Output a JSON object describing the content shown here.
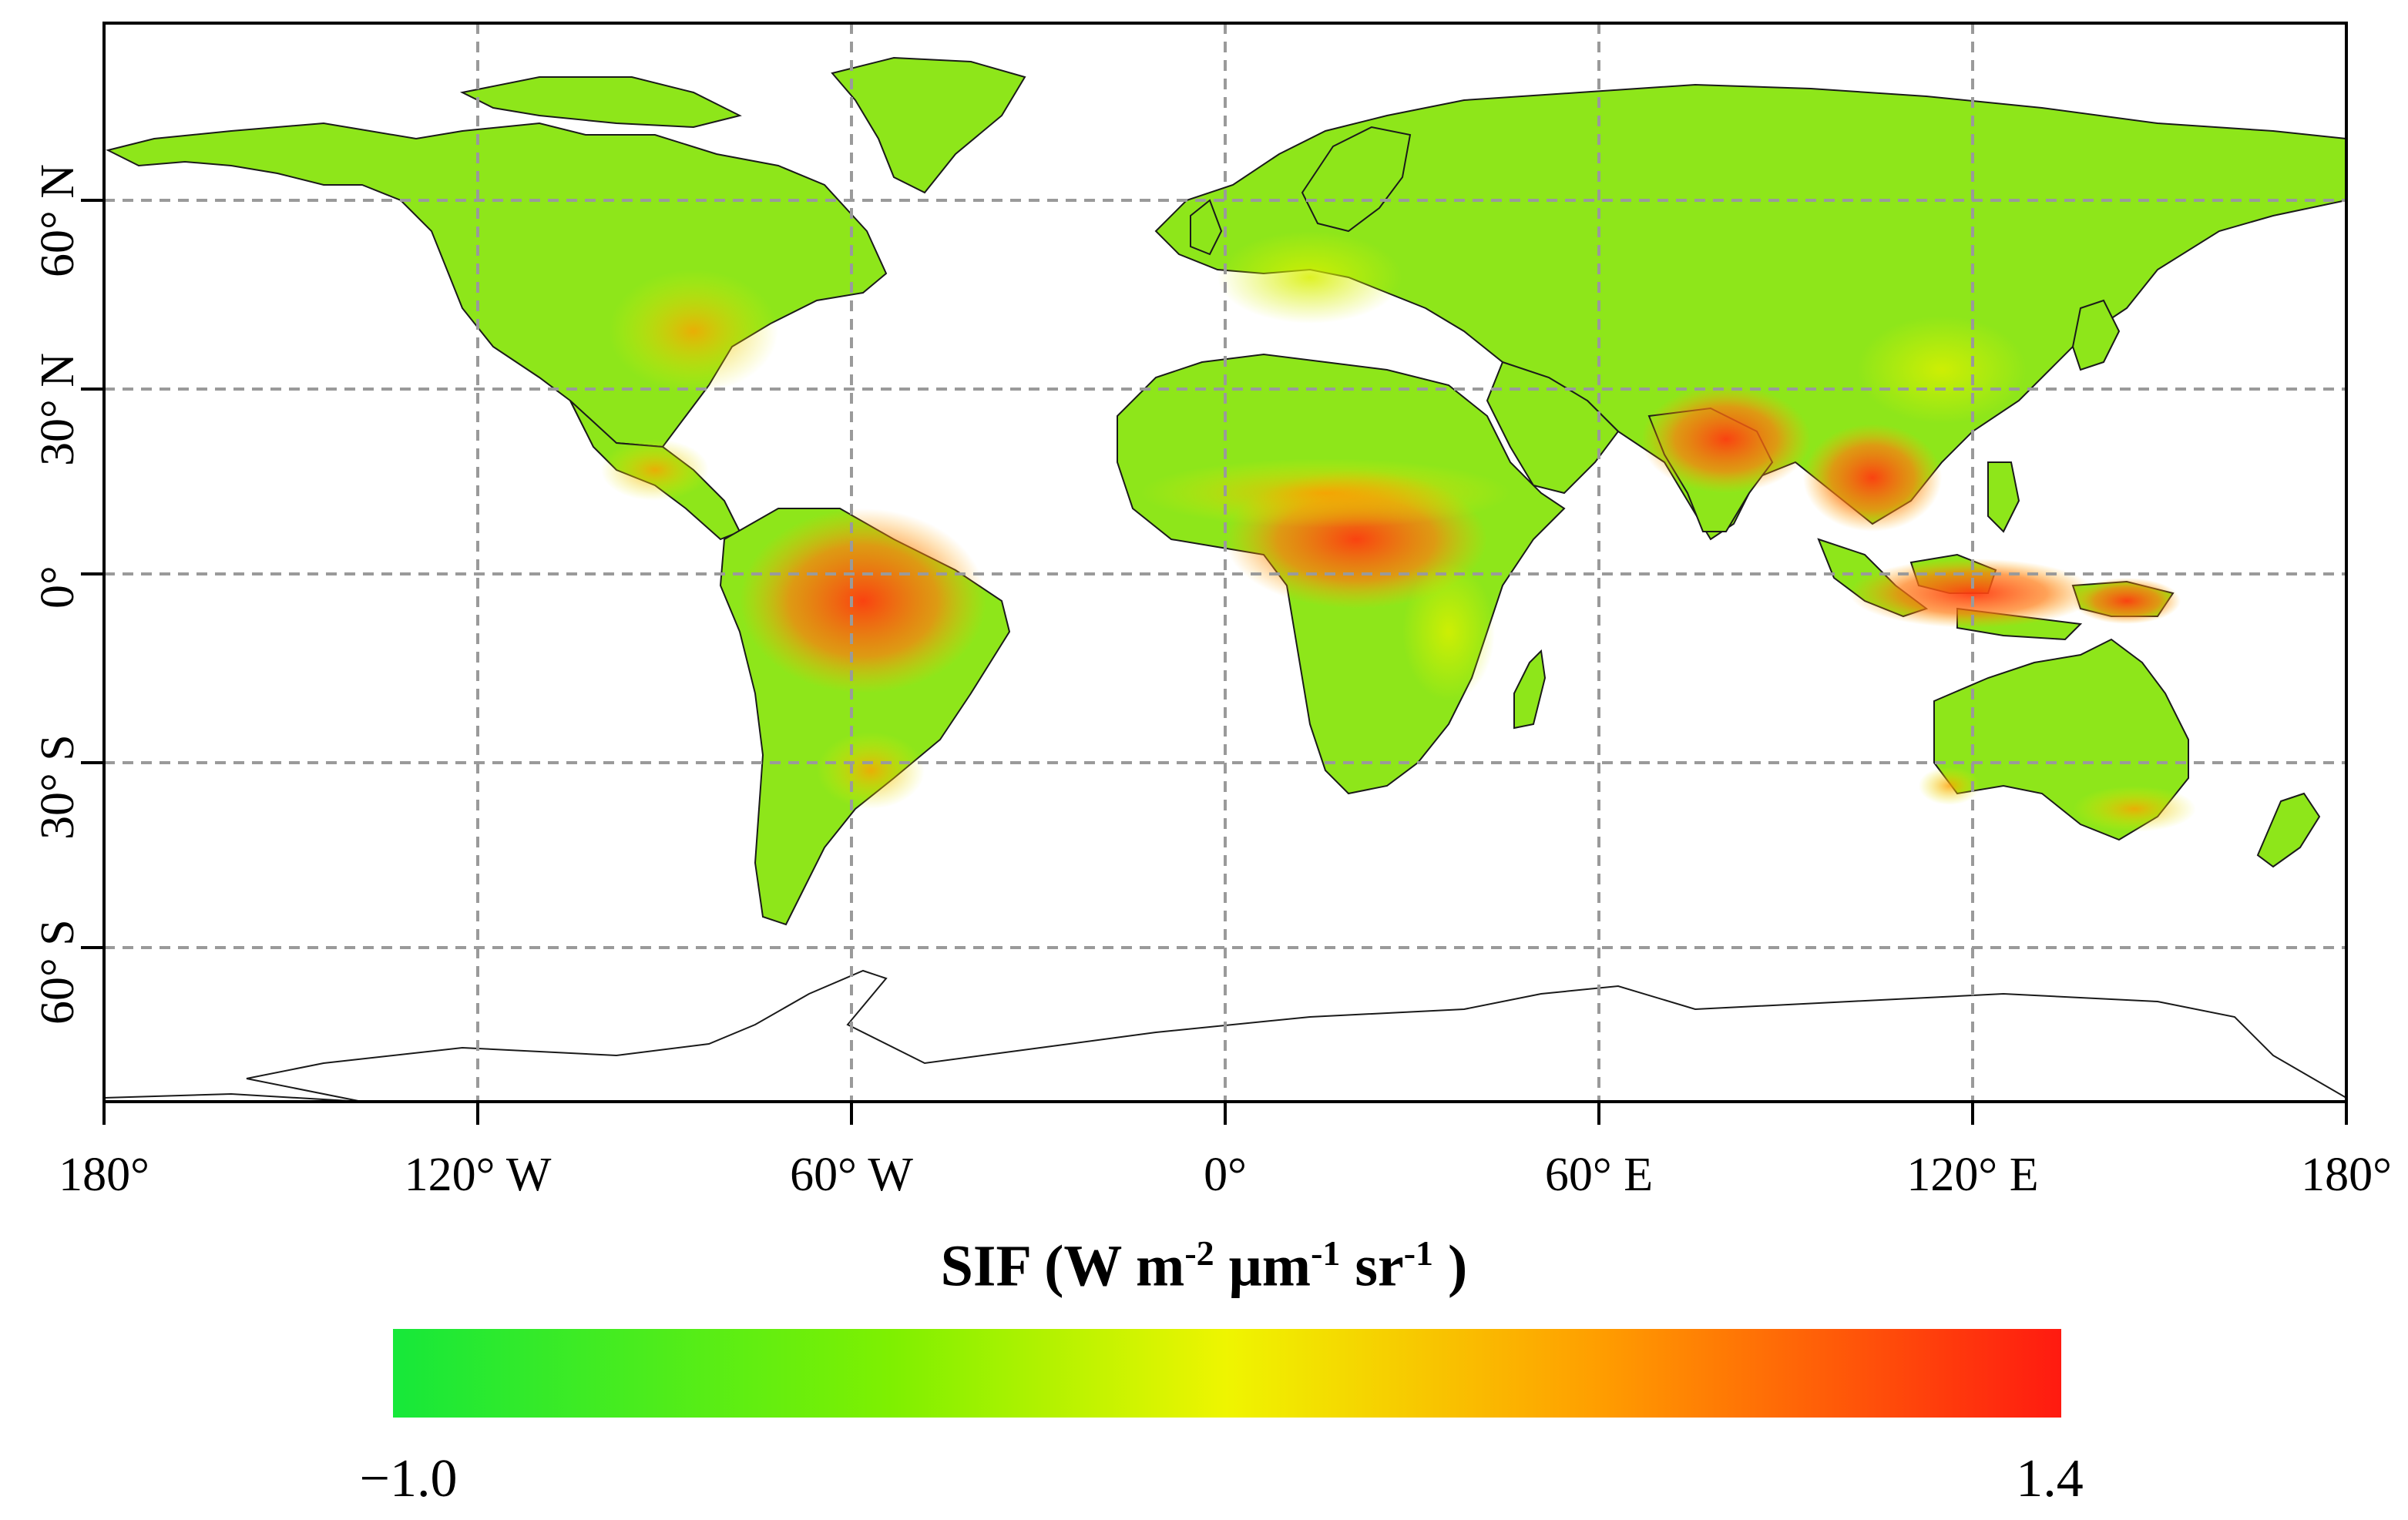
{
  "map": {
    "projection": "equirectangular",
    "extent": {
      "lon": [
        -180,
        180
      ],
      "lat": [
        -90,
        90
      ]
    },
    "gridlines": {
      "lon": [
        -120,
        -60,
        0,
        60,
        120
      ],
      "lat": [
        60,
        30,
        0,
        -30,
        -60
      ],
      "style": "dashed",
      "color": "#999999"
    },
    "x_ticks": [
      "180°",
      "120° W",
      "60° W",
      "0°",
      "60° E",
      "120° E",
      "180°"
    ],
    "y_ticks": [
      "60° N",
      "30° N",
      "0°",
      "30° S",
      "60° S"
    ],
    "land_colormap_stops": [
      "#16e83a",
      "#7ff000",
      "#eff500",
      "#ff9f00",
      "#ff1a10"
    ]
  },
  "colorbar": {
    "title_main": "SIF (W m",
    "title_exp1": "-2",
    "title_mid1": " μm",
    "title_exp2": "-1",
    "title_mid2": " sr",
    "title_exp3": "-1",
    "title_end": " )",
    "min_label": "−1.0",
    "max_label": "1.4",
    "min": -1.0,
    "max": 1.4,
    "colors": [
      "#16e83a",
      "#7ff000",
      "#eff500",
      "#ff9f00",
      "#ff1a10"
    ]
  }
}
